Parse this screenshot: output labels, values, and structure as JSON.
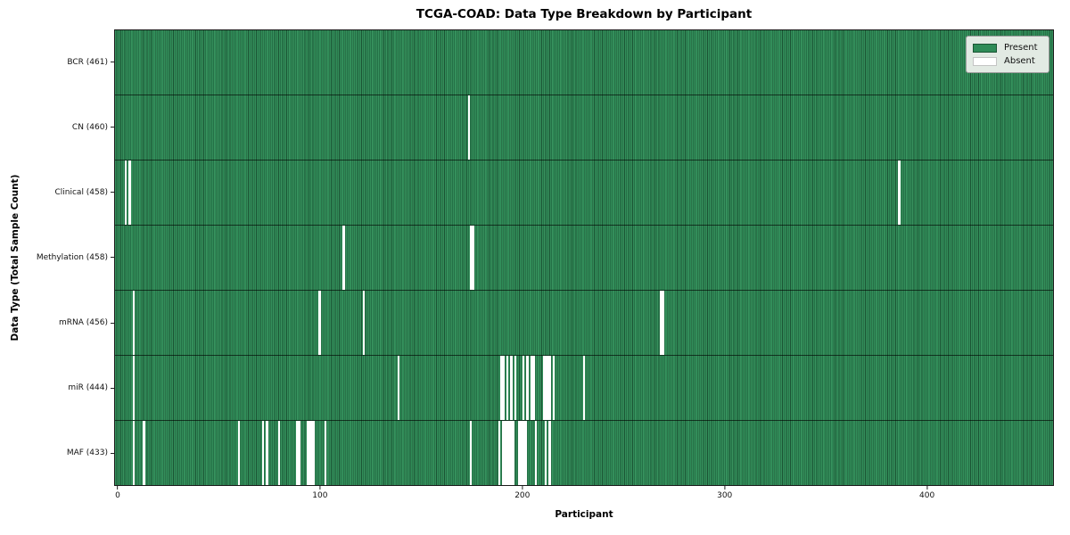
{
  "title": "TCGA-COAD: Data Type Breakdown by Participant",
  "legend": {
    "present_label": "Present",
    "absent_label": "Absent"
  },
  "colors": {
    "present": "#2e8b57",
    "present_edge": "#1b5434",
    "absent": "#ffffff",
    "legend_bg": "#e2eae3"
  },
  "axis": {
    "x_min_unit": -1.75,
    "x_span_units": 464.5,
    "n_rows": 7
  },
  "chart_data": {
    "type": "heatmap",
    "title": "TCGA-COAD: Data Type Breakdown by Participant",
    "xlabel": "Participant",
    "ylabel": "Data Type (Total Sample Count)",
    "x_range": [
      0,
      461
    ],
    "x_ticks": [
      0,
      100,
      200,
      300,
      400
    ],
    "n_participants": 461,
    "legend": [
      "Present",
      "Absent"
    ],
    "legend_position": "upper right",
    "grid": false,
    "rows": [
      {
        "label": "BCR (461)",
        "data_type": "BCR",
        "total_samples": 461,
        "absent_count": 0,
        "absent_participants": []
      },
      {
        "label": "CN (460)",
        "data_type": "CN",
        "total_samples": 460,
        "absent_count": 1,
        "absent_participants": [
          173
        ]
      },
      {
        "label": "Clinical (458)",
        "data_type": "Clinical",
        "total_samples": 458,
        "absent_count": 3,
        "absent_participants": [
          3,
          5,
          386
        ]
      },
      {
        "label": "Methylation (458)",
        "data_type": "Methylation",
        "total_samples": 458,
        "absent_count": 3,
        "absent_participants": [
          111,
          174,
          175
        ]
      },
      {
        "label": "mRNA (456)",
        "data_type": "mRNA",
        "total_samples": 456,
        "absent_count": 5,
        "absent_participants": [
          7,
          99,
          121,
          268,
          269
        ]
      },
      {
        "label": "miR (444)",
        "data_type": "miR",
        "total_samples": 444,
        "absent_count": 17,
        "absent_participants": [
          7,
          138,
          189,
          190,
          192,
          194,
          196,
          200,
          202,
          204,
          205,
          210,
          211,
          212,
          213,
          215,
          230
        ]
      },
      {
        "label": "MAF (433)",
        "data_type": "MAF",
        "total_samples": 433,
        "absent_count": 28,
        "absent_participants": [
          7,
          12,
          59,
          71,
          73,
          79,
          88,
          89,
          93,
          94,
          95,
          96,
          102,
          174,
          188,
          190,
          191,
          192,
          193,
          194,
          195,
          198,
          199,
          200,
          201,
          206,
          211,
          213
        ]
      }
    ]
  }
}
